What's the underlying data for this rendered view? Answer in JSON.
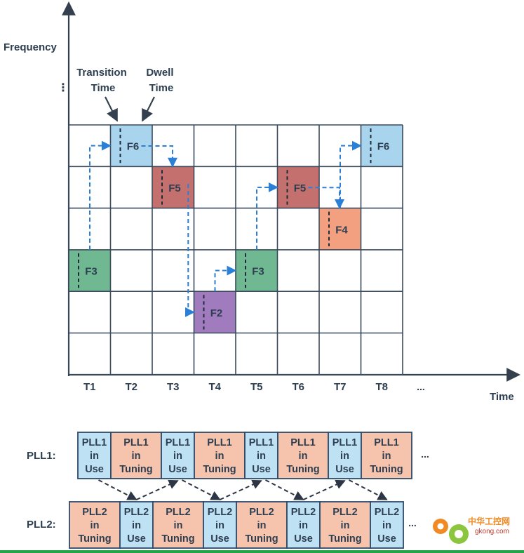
{
  "colors": {
    "grid": "#3a4a5c",
    "axis": "#34404e",
    "arrow_dash": "#2a7fd6",
    "f6": "#a9d4ee",
    "f5": "#c4706e",
    "f4": "#f2a07f",
    "f3": "#6fb892",
    "f2": "#a07cbf",
    "pll_use": "#bfe1f4",
    "pll_tuning": "#f6c3ad",
    "pll_border": "#2d4a6a",
    "footer_line": "#23a34a",
    "watermark": "#f08a24"
  },
  "axis": {
    "y_label": "Frequency",
    "y_dots": "⋮",
    "x_label": "Time",
    "time_ticks": [
      "T1",
      "T2",
      "T3",
      "T4",
      "T5",
      "T6",
      "T7",
      "T8"
    ],
    "time_ellipsis": "..."
  },
  "annotations": {
    "transition_line1": "Transition",
    "transition_line2": "Time",
    "dwell_line1": "Dwell",
    "dwell_line2": "Time"
  },
  "hops": [
    {
      "slot": "T1",
      "label": "F3",
      "color": "f3"
    },
    {
      "slot": "T2",
      "label": "F6",
      "color": "f6"
    },
    {
      "slot": "T3",
      "label": "F5",
      "color": "f5"
    },
    {
      "slot": "T4",
      "label": "F2",
      "color": "f2"
    },
    {
      "slot": "T5",
      "label": "F3",
      "color": "f3"
    },
    {
      "slot": "T6",
      "label": "F5",
      "color": "f5"
    },
    {
      "slot": "T7",
      "label": "F4",
      "color": "f4"
    },
    {
      "slot": "T8",
      "label": "F6",
      "color": "f6"
    }
  ],
  "pll1": {
    "label": "PLL1:",
    "cells": [
      {
        "lines": [
          "PLL1",
          "in",
          "Use"
        ],
        "state": "use"
      },
      {
        "lines": [
          "PLL1",
          "in",
          "Tuning"
        ],
        "state": "tuning"
      },
      {
        "lines": [
          "PLL1",
          "in",
          "Use"
        ],
        "state": "use"
      },
      {
        "lines": [
          "PLL1",
          "in",
          "Tuning"
        ],
        "state": "tuning"
      },
      {
        "lines": [
          "PLL1",
          "in",
          "Use"
        ],
        "state": "use"
      },
      {
        "lines": [
          "PLL1",
          "in",
          "Tuning"
        ],
        "state": "tuning"
      },
      {
        "lines": [
          "PLL1",
          "in",
          "Use"
        ],
        "state": "use"
      },
      {
        "lines": [
          "PLL1",
          "in",
          "Tuning"
        ],
        "state": "tuning"
      }
    ],
    "ellipsis": "..."
  },
  "pll2": {
    "label": "PLL2:",
    "cells": [
      {
        "lines": [
          "PLL2",
          "in",
          "Tuning"
        ],
        "state": "tuning"
      },
      {
        "lines": [
          "PLL2",
          "in",
          "Use"
        ],
        "state": "use"
      },
      {
        "lines": [
          "PLL2",
          "in",
          "Tuning"
        ],
        "state": "tuning"
      },
      {
        "lines": [
          "PLL2",
          "in",
          "Use"
        ],
        "state": "use"
      },
      {
        "lines": [
          "PLL2",
          "in",
          "Tuning"
        ],
        "state": "tuning"
      },
      {
        "lines": [
          "PLL2",
          "in",
          "Use"
        ],
        "state": "use"
      },
      {
        "lines": [
          "PLL2",
          "in",
          "Tuning"
        ],
        "state": "tuning"
      },
      {
        "lines": [
          "PLL2",
          "in",
          "Use"
        ],
        "state": "use"
      }
    ],
    "ellipsis": "..."
  },
  "watermark": {
    "text_cn": "中华工控网",
    "text_url": "gkong.com"
  }
}
